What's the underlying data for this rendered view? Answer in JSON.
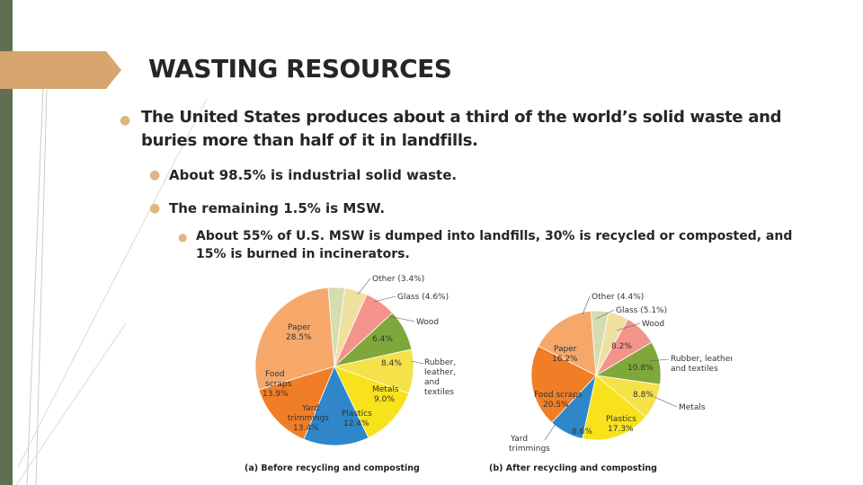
{
  "slide": {
    "title": "WASTING RESOURCES",
    "bullets": [
      "The United States produces about a third of the world’s solid waste and buries more than half of it in landfills.",
      "About 98.5% is industrial solid waste.",
      "The remaining 1.5% is MSW.",
      "About 55% of U.S. MSW is dumped into landfills, 30% is recycled or composted, and 15% is burned in incinerators."
    ]
  },
  "colors": {
    "accent_tab": "#d7a56f",
    "left_bar": "#5f6f4f",
    "bullet_dot": "#e0b67f"
  },
  "chart_data": [
    {
      "type": "pie",
      "title": "(a) Before recycling and composting",
      "slices": [
        {
          "label": "Other",
          "value": 3.4,
          "text": "Other (3.4%)",
          "color": "#d5dcae"
        },
        {
          "label": "Glass",
          "value": 4.6,
          "text": "Glass (4.6%)",
          "color": "#efe0a0"
        },
        {
          "label": "Wood",
          "value": 6.4,
          "text": "6.4%",
          "color": "#f4938a"
        },
        {
          "label": "Rubber, leather, and textiles",
          "value": 8.4,
          "text": "8.4%",
          "color": "#7fa83c"
        },
        {
          "label": "Metals",
          "value": 9.0,
          "text": "9.0%",
          "color": "#f5e14a"
        },
        {
          "label": "Plastics",
          "value": 12.4,
          "text": "12.4%",
          "color": "#f7e21c"
        },
        {
          "label": "Yard trimmings",
          "value": 13.4,
          "text": "13.4%",
          "color": "#2f86c8"
        },
        {
          "label": "Food scraps",
          "value": 13.9,
          "text": "13.9%",
          "color": "#f07e26"
        },
        {
          "label": "Paper",
          "value": 28.5,
          "text": "28.5%",
          "color": "#f5a86a"
        }
      ],
      "labels": {
        "other": "Other (3.4%)",
        "glass": "Glass (4.6%)",
        "wood": "Wood",
        "wood_value": "6.4%",
        "paper": "Paper",
        "paper_value": "28.5%",
        "rubber_value": "8.4%",
        "rubber_l1": "Rubber,",
        "rubber_l2": "leather,",
        "rubber_l3": "and",
        "rubber_l4": "textiles",
        "food_l1": "Food",
        "food_l2": "scraps",
        "food_value": "13.9%",
        "metals": "Metals",
        "metals_value": "9.0%",
        "yard_l1": "Yard",
        "yard_l2": "trimmings",
        "yard_value": "13.4%",
        "plastics": "Plastics",
        "plastics_value": "12.4%"
      }
    },
    {
      "type": "pie",
      "title": "(b) After recycling and composting",
      "slices": [
        {
          "label": "Other",
          "value": 4.4,
          "text": "Other (4.4%)",
          "color": "#d5dcae"
        },
        {
          "label": "Glass",
          "value": 5.1,
          "text": "Glass (5.1%)",
          "color": "#efe0a0"
        },
        {
          "label": "Wood",
          "value": 8.2,
          "text": "8.2%",
          "color": "#f4938a"
        },
        {
          "label": "Rubber, leather, and textiles",
          "value": 10.8,
          "text": "10.8%",
          "color": "#7fa83c"
        },
        {
          "label": "Metals",
          "value": 8.8,
          "text": "8.8%",
          "color": "#f5e14a"
        },
        {
          "label": "Plastics",
          "value": 17.3,
          "text": "17.3%",
          "color": "#f7e21c"
        },
        {
          "label": "Yard trimmings",
          "value": 8.6,
          "text": "8.6%",
          "color": "#2f86c8"
        },
        {
          "label": "Food scraps",
          "value": 20.5,
          "text": "20.5%",
          "color": "#f07e26"
        },
        {
          "label": "Paper",
          "value": 16.2,
          "text": "16.2%",
          "color": "#f5a86a"
        }
      ],
      "labels": {
        "other": "Other (4.4%)",
        "glass": "Glass (5.1%)",
        "wood": "Wood",
        "wood_value": "8.2%",
        "paper": "Paper",
        "paper_value": "16.2%",
        "rubber_l1": "Rubber, leather,",
        "rubber_l2": "and textiles",
        "rubber_value": "10.8%",
        "metals": "Metals",
        "metals_value": "8.8%",
        "food": "Food scraps",
        "food_value": "20.5%",
        "yard_l1": "Yard",
        "yard_l2": "trimmings",
        "yard_value": "8.6%",
        "plastics": "Plastics",
        "plastics_value": "17.3%"
      }
    }
  ]
}
